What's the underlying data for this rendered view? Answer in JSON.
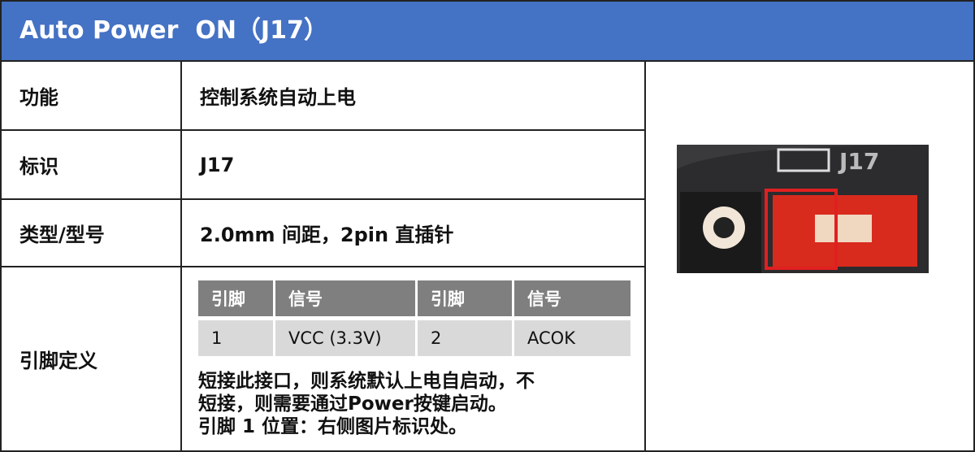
{
  "header": {
    "title": "Auto Power  ON（J17）"
  },
  "table": {
    "rows": [
      {
        "label": "功能",
        "value": "控制系统自动上电"
      },
      {
        "label": "标识",
        "value": "J17"
      },
      {
        "label": "类型/型号",
        "value": "2.0mm 间距，2pin 直插针"
      }
    ],
    "pin_definition": {
      "label": "引脚定义",
      "pin_table": {
        "header": [
          "引脚",
          "信号",
          "引脚",
          "信号"
        ],
        "rows": [
          [
            "1",
            "VCC (3.3V)",
            "2",
            "ACOK"
          ]
        ]
      },
      "notes": [
        "短接此接口，则系统默认上电自启动，不",
        "短接，则需要通过Power按键启动。",
        "引脚 1 位置：右侧图片标识处。"
      ]
    }
  },
  "image": {
    "silkscreen": "J17"
  }
}
